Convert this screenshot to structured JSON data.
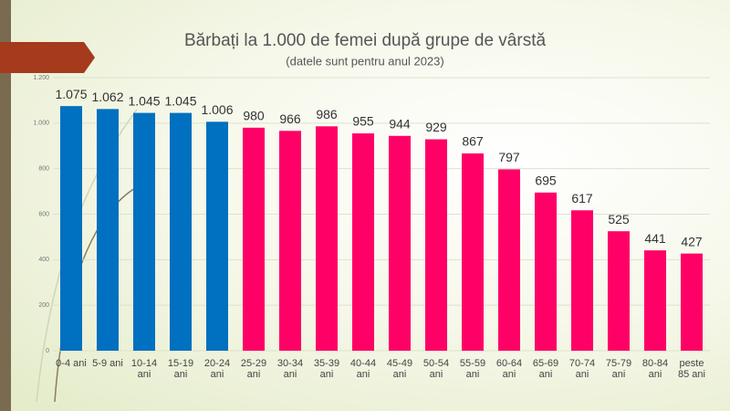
{
  "chart_data": {
    "type": "bar",
    "title": "Bărbați la 1.000 de femei după grupe de vârstă",
    "subtitle": "(datele sunt pentru anul 2023)",
    "categories": [
      "0-4 ani",
      "5-9 ani",
      "10-14 ani",
      "15-19 ani",
      "20-24 ani",
      "25-29 ani",
      "30-34 ani",
      "35-39 ani",
      "40-44 ani",
      "45-49 ani",
      "50-54 ani",
      "55-59 ani",
      "60-64 ani",
      "65-69 ani",
      "70-74 ani",
      "75-79 ani",
      "80-84 ani",
      "peste 85 ani"
    ],
    "values": [
      1075,
      1062,
      1045,
      1045,
      1006,
      980,
      966,
      986,
      955,
      944,
      929,
      867,
      797,
      695,
      617,
      525,
      441,
      427
    ],
    "value_labels": [
      "1.075",
      "1.062",
      "1.045",
      "1.045",
      "1.006",
      "980",
      "966",
      "986",
      "955",
      "944",
      "929",
      "867",
      "797",
      "695",
      "617",
      "525",
      "441",
      "427"
    ],
    "colors": [
      "#0070c0",
      "#0070c0",
      "#0070c0",
      "#0070c0",
      "#0070c0",
      "#ff0066",
      "#ff0066",
      "#ff0066",
      "#ff0066",
      "#ff0066",
      "#ff0066",
      "#ff0066",
      "#ff0066",
      "#ff0066",
      "#ff0066",
      "#ff0066",
      "#ff0066",
      "#ff0066"
    ],
    "ylim": [
      0,
      1200
    ],
    "yticks": [
      0,
      200,
      400,
      600,
      800,
      {
        "value": 1000,
        "label": "1.000"
      },
      {
        "value": 1200,
        "label": "1.200"
      }
    ],
    "grid": true
  }
}
